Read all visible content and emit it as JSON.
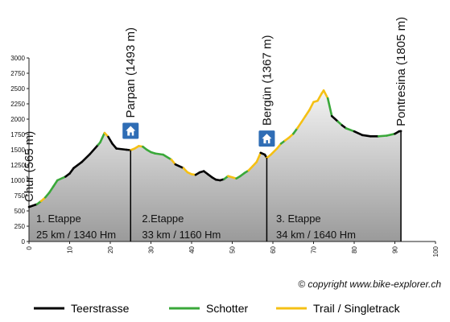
{
  "chart_data": {
    "type": "area",
    "xlim": [
      0,
      100
    ],
    "ylim": [
      0,
      3000
    ],
    "xticks": [
      "0",
      "10",
      "20",
      "30",
      "40",
      "50",
      "60",
      "70",
      "80",
      "90",
      "100"
    ],
    "yticks": [
      "0",
      "250",
      "500",
      "750",
      "1000",
      "1250",
      "1500",
      "1750",
      "2000",
      "2250",
      "2500",
      "2750",
      "3000"
    ],
    "grid": false,
    "legend_position": "bottom",
    "colors": {
      "Teerstrasse": "#000000",
      "Schotter": "#3aa83a",
      "Trail / Singletrack": "#f5c014",
      "area_top": "#f4f4f4",
      "area_bottom": "#9a9a9a",
      "house_icon": "#2f6db5"
    },
    "series": [
      {
        "name": "Teerstrasse",
        "style": "black"
      },
      {
        "name": "Schotter",
        "style": "green"
      },
      {
        "name": "Trail / Singletrack",
        "style": "yellow"
      }
    ],
    "profile": [
      [
        0,
        565,
        "k"
      ],
      [
        2,
        610,
        "k"
      ],
      [
        3,
        660,
        "g"
      ],
      [
        4,
        720,
        "y"
      ],
      [
        5,
        800,
        "g"
      ],
      [
        6,
        900,
        "g"
      ],
      [
        7,
        1000,
        "g"
      ],
      [
        9,
        1060,
        "g"
      ],
      [
        10,
        1110,
        "k"
      ],
      [
        11,
        1200,
        "k"
      ],
      [
        13,
        1300,
        "k"
      ],
      [
        15,
        1430,
        "k"
      ],
      [
        17,
        1580,
        "k"
      ],
      [
        17.5,
        1620,
        "g"
      ],
      [
        18,
        1690,
        "g"
      ],
      [
        18.6,
        1775,
        "g"
      ],
      [
        19.5,
        1710,
        "y"
      ],
      [
        20.5,
        1600,
        "k"
      ],
      [
        21.5,
        1520,
        "k"
      ],
      [
        24,
        1500,
        "k"
      ],
      [
        25,
        1493,
        "k"
      ],
      [
        26,
        1520,
        "y"
      ],
      [
        27,
        1560,
        "y"
      ],
      [
        28,
        1550,
        "y"
      ],
      [
        29,
        1500,
        "g"
      ],
      [
        30,
        1460,
        "g"
      ],
      [
        31,
        1440,
        "g"
      ],
      [
        33,
        1420,
        "g"
      ],
      [
        35,
        1340,
        "g"
      ],
      [
        36,
        1260,
        "y"
      ],
      [
        38,
        1200,
        "k"
      ],
      [
        39,
        1130,
        "y"
      ],
      [
        40,
        1100,
        "y"
      ],
      [
        41,
        1090,
        "y"
      ],
      [
        42,
        1130,
        "k"
      ],
      [
        43,
        1150,
        "k"
      ],
      [
        44,
        1100,
        "k"
      ],
      [
        45,
        1050,
        "k"
      ],
      [
        46,
        1010,
        "k"
      ],
      [
        47,
        1000,
        "k"
      ],
      [
        48,
        1020,
        "k"
      ],
      [
        49,
        1070,
        "g"
      ],
      [
        50,
        1050,
        "y"
      ],
      [
        51,
        1030,
        "y"
      ],
      [
        52,
        1070,
        "g"
      ],
      [
        53,
        1120,
        "g"
      ],
      [
        54,
        1160,
        "g"
      ],
      [
        55,
        1230,
        "y"
      ],
      [
        56,
        1300,
        "y"
      ],
      [
        57,
        1450,
        "y"
      ],
      [
        58,
        1420,
        "k"
      ],
      [
        58.5,
        1367,
        "k"
      ],
      [
        59.5,
        1420,
        "y"
      ],
      [
        61,
        1520,
        "y"
      ],
      [
        62,
        1600,
        "y"
      ],
      [
        63,
        1650,
        "g"
      ],
      [
        64,
        1700,
        "y"
      ],
      [
        65,
        1760,
        "y"
      ],
      [
        66,
        1850,
        "g"
      ],
      [
        67,
        1950,
        "y"
      ],
      [
        68,
        2050,
        "y"
      ],
      [
        69,
        2150,
        "y"
      ],
      [
        70,
        2280,
        "y"
      ],
      [
        71,
        2300,
        "y"
      ],
      [
        72,
        2420,
        "y"
      ],
      [
        72.5,
        2470,
        "y"
      ],
      [
        73.5,
        2340,
        "y"
      ],
      [
        74.5,
        2050,
        "g"
      ],
      [
        76,
        1960,
        "k"
      ],
      [
        77,
        1900,
        "g"
      ],
      [
        78,
        1850,
        "k"
      ],
      [
        80,
        1800,
        "g"
      ],
      [
        82,
        1740,
        "k"
      ],
      [
        84,
        1720,
        "k"
      ],
      [
        86,
        1720,
        "k"
      ],
      [
        88,
        1730,
        "g"
      ],
      [
        90,
        1760,
        "g"
      ],
      [
        91,
        1800,
        "k"
      ],
      [
        91.5,
        1805,
        "k"
      ]
    ],
    "passes": [
      {
        "x": 0,
        "label": "Chur (565 m)"
      },
      {
        "x": 25,
        "label": "Parpan (1493 m)",
        "hotel": true
      },
      {
        "x": 58.5,
        "label": "Bergün (1367 m)",
        "hotel": true
      },
      {
        "x": 91.5,
        "label": "Pontresina (1805 m)"
      }
    ],
    "stages": [
      {
        "title": "1. Etappe",
        "detail": "25 km / 1340 Hm",
        "x": 1
      },
      {
        "title": "2.Etappe",
        "detail": "33 km / 1160 Hm",
        "x": 27
      },
      {
        "title": "3. Etappe",
        "detail": "34 km / 1640 Hm",
        "x": 60
      }
    ],
    "copyright": "© copyright www.bike-explorer.ch"
  }
}
